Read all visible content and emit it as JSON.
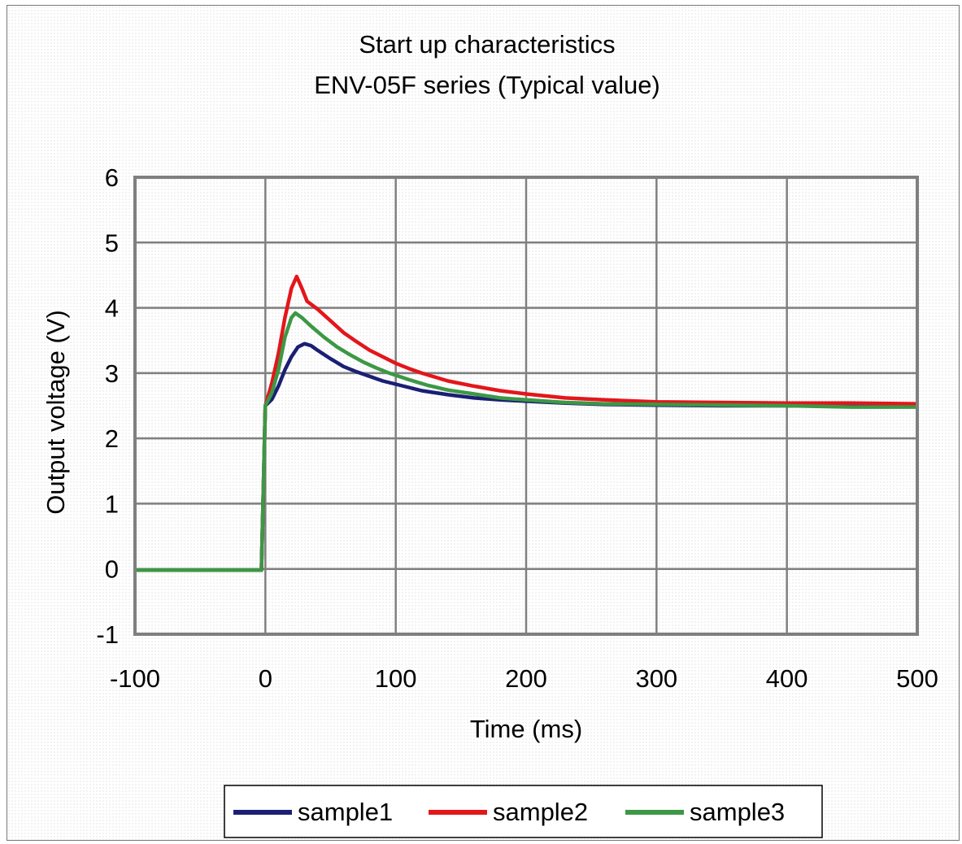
{
  "chart_data": {
    "type": "line",
    "title": "Start up characteristics",
    "subtitle": "ENV-05F series (Typical value)",
    "xlabel": "Time (ms)",
    "ylabel": "Output voltage (V)",
    "xlim": [
      -100,
      500
    ],
    "ylim": [
      -1,
      6
    ],
    "x_ticks": [
      -100,
      0,
      100,
      200,
      300,
      400,
      500
    ],
    "y_ticks": [
      -1,
      0,
      1,
      2,
      3,
      4,
      5,
      6
    ],
    "x_tick_labels": [
      "-100",
      "0",
      "100",
      "200",
      "300",
      "400",
      "500"
    ],
    "y_tick_labels": [
      "-1",
      "0",
      "1",
      "2",
      "3",
      "4",
      "5",
      "6"
    ],
    "grid": true,
    "legend_position": "bottom",
    "series": [
      {
        "name": "sample1",
        "color": "#1b1f73",
        "points": [
          [
            -100,
            -0.02
          ],
          [
            -3,
            -0.02
          ],
          [
            0,
            2.5
          ],
          [
            5,
            2.6
          ],
          [
            10,
            2.8
          ],
          [
            15,
            3.05
          ],
          [
            20,
            3.25
          ],
          [
            25,
            3.4
          ],
          [
            30,
            3.45
          ],
          [
            35,
            3.42
          ],
          [
            40,
            3.35
          ],
          [
            50,
            3.22
          ],
          [
            60,
            3.1
          ],
          [
            70,
            3.02
          ],
          [
            80,
            2.95
          ],
          [
            90,
            2.88
          ],
          [
            100,
            2.83
          ],
          [
            110,
            2.78
          ],
          [
            120,
            2.73
          ],
          [
            140,
            2.67
          ],
          [
            160,
            2.62
          ],
          [
            180,
            2.59
          ],
          [
            200,
            2.57
          ],
          [
            230,
            2.54
          ],
          [
            260,
            2.52
          ],
          [
            300,
            2.51
          ],
          [
            350,
            2.5
          ],
          [
            400,
            2.5
          ],
          [
            450,
            2.49
          ],
          [
            500,
            2.49
          ]
        ]
      },
      {
        "name": "sample2",
        "color": "#e3161b",
        "points": [
          [
            -100,
            -0.02
          ],
          [
            -3,
            -0.02
          ],
          [
            0,
            2.5
          ],
          [
            5,
            2.85
          ],
          [
            10,
            3.3
          ],
          [
            15,
            3.85
          ],
          [
            20,
            4.3
          ],
          [
            24,
            4.48
          ],
          [
            28,
            4.3
          ],
          [
            32,
            4.1
          ],
          [
            40,
            3.98
          ],
          [
            50,
            3.8
          ],
          [
            60,
            3.62
          ],
          [
            70,
            3.48
          ],
          [
            80,
            3.35
          ],
          [
            90,
            3.25
          ],
          [
            100,
            3.15
          ],
          [
            110,
            3.07
          ],
          [
            120,
            3.0
          ],
          [
            140,
            2.88
          ],
          [
            160,
            2.8
          ],
          [
            180,
            2.73
          ],
          [
            200,
            2.68
          ],
          [
            230,
            2.62
          ],
          [
            260,
            2.59
          ],
          [
            300,
            2.56
          ],
          [
            350,
            2.55
          ],
          [
            400,
            2.54
          ],
          [
            450,
            2.54
          ],
          [
            500,
            2.53
          ]
        ]
      },
      {
        "name": "sample3",
        "color": "#3c9845",
        "points": [
          [
            -100,
            -0.02
          ],
          [
            -3,
            -0.02
          ],
          [
            0,
            2.5
          ],
          [
            5,
            2.7
          ],
          [
            10,
            3.05
          ],
          [
            15,
            3.55
          ],
          [
            20,
            3.85
          ],
          [
            23,
            3.92
          ],
          [
            28,
            3.85
          ],
          [
            35,
            3.72
          ],
          [
            45,
            3.55
          ],
          [
            55,
            3.4
          ],
          [
            65,
            3.28
          ],
          [
            75,
            3.17
          ],
          [
            85,
            3.08
          ],
          [
            95,
            3.0
          ],
          [
            110,
            2.9
          ],
          [
            125,
            2.81
          ],
          [
            140,
            2.74
          ],
          [
            160,
            2.68
          ],
          [
            180,
            2.62
          ],
          [
            200,
            2.59
          ],
          [
            230,
            2.55
          ],
          [
            260,
            2.53
          ],
          [
            300,
            2.52
          ],
          [
            350,
            2.51
          ],
          [
            400,
            2.5
          ],
          [
            450,
            2.48
          ],
          [
            500,
            2.48
          ]
        ]
      }
    ]
  }
}
